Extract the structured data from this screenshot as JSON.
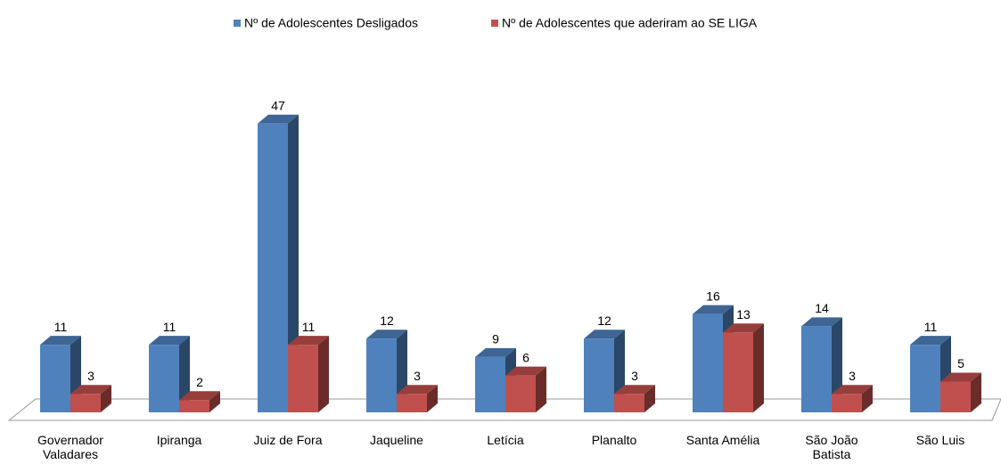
{
  "chart_data": {
    "type": "bar3d",
    "categories": [
      "Governador Valadares",
      "Ipiranga",
      "Juiz de Fora",
      "Jaqueline",
      "Letícia",
      "Planalto",
      "Santa Amélia",
      "São João Batista",
      "São Luis"
    ],
    "series": [
      {
        "name": "Nº de Adolescentes Desligados",
        "color": "#4f81bd",
        "values": [
          11,
          11,
          47,
          12,
          9,
          12,
          16,
          14,
          11
        ]
      },
      {
        "name": "Nº de Adolescentes que aderiram ao SE LIGA",
        "color": "#c0504d",
        "values": [
          3,
          2,
          11,
          3,
          6,
          3,
          13,
          3,
          5
        ]
      }
    ]
  }
}
